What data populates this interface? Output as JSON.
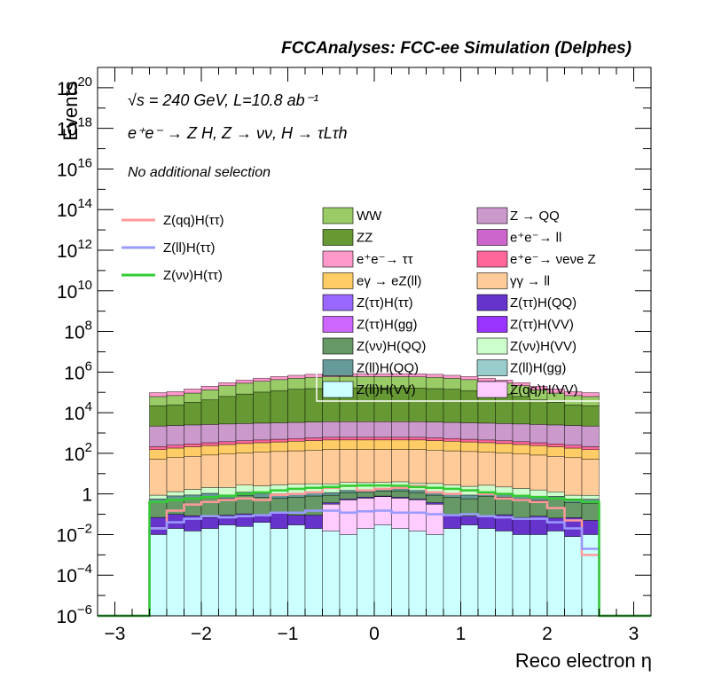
{
  "chart_data": {
    "type": "histogram",
    "title": "FCCAnalyses: FCC-ee Simulation (Delphes)",
    "xlabel": "Reco electron η",
    "ylabel": "Events",
    "xlim": [
      -3.2,
      3.2
    ],
    "ylim": [
      1e-06,
      1e+21
    ],
    "yscale": "log",
    "x_ticks": [
      "−3",
      "−2",
      "−1",
      "0",
      "1",
      "2",
      "3"
    ],
    "y_ticks": [
      "10^20",
      "10^18",
      "10^16",
      "10^14",
      "10^12",
      "10^10",
      "10^8",
      "10^6",
      "10^4",
      "10^2",
      "1",
      "10^-2",
      "10^-4",
      "10^-6"
    ],
    "annotations": {
      "line1": "√s = 240 GeV, L=10.8 ab⁻¹",
      "line2": "e⁺e⁻ → Z H, Z → νν, H → τLτh",
      "line3": "No additional selection"
    },
    "bin_edges": [
      -2.6,
      -2.4,
      -2.2,
      -2.0,
      -1.8,
      -1.6,
      -1.4,
      -1.2,
      -1.0,
      -0.8,
      -0.6,
      -0.4,
      -0.2,
      0.0,
      0.2,
      0.4,
      0.6,
      0.8,
      1.0,
      1.2,
      1.4,
      1.6,
      1.8,
      2.0,
      2.2,
      2.4,
      2.6
    ],
    "stack_order": "bottom_to_top",
    "stack_edges": "black",
    "stacked_series": [
      {
        "name": "Z(ll)H(VV)",
        "color": "#ccffff",
        "values": [
          0.01,
          0.02,
          0.015,
          0.02,
          0.03,
          0.025,
          0.04,
          0.02,
          0.03,
          0.02,
          0.015,
          0.01,
          0.02,
          0.03,
          0.02,
          0.015,
          0.01,
          0.02,
          0.03,
          0.02,
          0.015,
          0.01,
          0.01,
          0.015,
          0.008,
          0.01
        ]
      },
      {
        "name": "Z(qq)H(VV)",
        "color": "#ffccff",
        "values": [
          0,
          0,
          0,
          0,
          0,
          0,
          0,
          0,
          0,
          0,
          0.3,
          0.5,
          0.6,
          0.7,
          0.6,
          0.5,
          0.3,
          0,
          0,
          0,
          0,
          0,
          0,
          0,
          0,
          0
        ]
      },
      {
        "name": "Z(ττ)H(QQ)",
        "color": "#6633cc",
        "values": [
          0.06,
          0.08,
          0.07,
          0.05,
          0.06,
          0.08,
          0.05,
          0.09,
          0.06,
          0.07,
          0.05,
          0.06,
          0.08,
          0.06,
          0.07,
          0.05,
          0.06,
          0.07,
          0.05,
          0.06,
          0.08,
          0.06,
          0.07,
          0.05,
          0.06,
          0.04
        ]
      },
      {
        "name": "Z(νν)H(QQ)",
        "color": "#669966",
        "values": [
          0.3,
          0.4,
          0.5,
          0.6,
          0.5,
          0.7,
          0.6,
          0.5,
          0.6,
          0.7,
          0.5,
          0.6,
          0.5,
          0.6,
          0.7,
          0.6,
          0.5,
          0.6,
          0.5,
          0.7,
          0.6,
          0.5,
          0.4,
          0.5,
          0.3,
          0.3
        ]
      },
      {
        "name": "Z(ll)H(QQ)",
        "color": "#669999",
        "values": [
          0.2,
          0.3,
          0.3,
          0.4,
          0.3,
          0.4,
          0.3,
          0.4,
          0.3,
          0.4,
          0.3,
          0.3,
          0.4,
          0.3,
          0.4,
          0.3,
          0.4,
          0.3,
          0.3,
          0.4,
          0.3,
          0.3,
          0.3,
          0.2,
          0.2,
          0.2
        ]
      },
      {
        "name": "Z(νν)H(VV)",
        "color": "#ccffcc",
        "values": [
          0.3,
          0.5,
          0.8,
          1.0,
          1.2,
          1.5,
          1.5,
          1.8,
          2.0,
          2.0,
          2.0,
          2.2,
          2.0,
          2.0,
          2.2,
          2.0,
          2.0,
          1.8,
          1.5,
          1.5,
          1.2,
          1.0,
          0.8,
          0.5,
          0.3,
          0.3
        ]
      },
      {
        "name": "γγ → ll",
        "color": "#ffcc99",
        "values": [
          50,
          60,
          70,
          80,
          90,
          100,
          110,
          120,
          130,
          140,
          150,
          150,
          150,
          150,
          150,
          150,
          140,
          130,
          120,
          110,
          100,
          90,
          80,
          70,
          60,
          50
        ]
      },
      {
        "name": "eγ → eZ(ll)",
        "color": "#ffcc66",
        "values": [
          100,
          120,
          140,
          160,
          180,
          200,
          220,
          240,
          260,
          280,
          300,
          300,
          300,
          300,
          300,
          300,
          280,
          260,
          240,
          220,
          200,
          180,
          160,
          140,
          120,
          100
        ]
      },
      {
        "name": "e⁺e⁻→ νeνe Z",
        "color": "#ff6699",
        "values": [
          60,
          70,
          80,
          90,
          100,
          110,
          120,
          130,
          140,
          150,
          160,
          160,
          160,
          160,
          160,
          160,
          150,
          140,
          130,
          120,
          110,
          100,
          90,
          80,
          70,
          60
        ]
      },
      {
        "name": "Z → QQ",
        "color": "#cc99cc",
        "values": [
          2000,
          2100,
          2200,
          2300,
          2400,
          2500,
          2600,
          2700,
          2800,
          2900,
          3000,
          3000,
          3000,
          3000,
          3000,
          3000,
          2900,
          2800,
          2700,
          2600,
          2500,
          2400,
          2300,
          2200,
          2100,
          2000
        ]
      },
      {
        "name": "ZZ",
        "color": "#669933",
        "values": [
          20000,
          22000,
          30000,
          40000,
          60000,
          80000,
          100000,
          120000,
          140000,
          150000,
          160000,
          165000,
          165000,
          165000,
          165000,
          160000,
          150000,
          140000,
          120000,
          100000,
          80000,
          60000,
          40000,
          30000,
          22000,
          20000
        ]
      },
      {
        "name": "WW",
        "color": "#99cc66",
        "values": [
          40000,
          45000,
          60000,
          90000,
          150000,
          200000,
          250000,
          300000,
          350000,
          400000,
          420000,
          430000,
          430000,
          430000,
          430000,
          420000,
          400000,
          350000,
          300000,
          250000,
          200000,
          150000,
          90000,
          60000,
          45000,
          40000
        ]
      },
      {
        "name": "e⁺e⁻→ ττ",
        "color": "#ff99cc",
        "values": [
          35000,
          40000,
          55000,
          70000,
          90000,
          120000,
          150000,
          180000,
          200000,
          220000,
          230000,
          240000,
          240000,
          240000,
          240000,
          230000,
          220000,
          200000,
          180000,
          150000,
          120000,
          90000,
          70000,
          55000,
          40000,
          35000
        ]
      }
    ],
    "overlay_series": [
      {
        "name": "Z(qq)H(ττ)",
        "color": "#ff9999",
        "values": [
          0.02,
          0.15,
          0.3,
          0.4,
          0.5,
          0.6,
          0.5,
          0.9,
          1.0,
          1.2,
          2.0,
          2.5,
          1.5,
          1.8,
          2.0,
          2.5,
          1.2,
          1.0,
          1.5,
          1.0,
          0.6,
          0.5,
          0.4,
          0.2,
          0.05,
          0.001
        ]
      },
      {
        "name": "Z(ll)H(ττ)",
        "color": "#9999ff",
        "values": [
          0.02,
          0.04,
          0.06,
          0.08,
          0.07,
          0.08,
          0.09,
          0.12,
          0.12,
          0.15,
          0.15,
          0.12,
          0.14,
          0.15,
          0.12,
          0.12,
          0.1,
          0.09,
          0.1,
          0.08,
          0.07,
          0.06,
          0.06,
          0.04,
          0.02,
          0.002
        ]
      },
      {
        "name": "Z(νν)H(ττ)",
        "color": "#33cc33",
        "values": [
          0.4,
          0.5,
          0.6,
          0.7,
          0.8,
          1.0,
          1.2,
          1.5,
          1.8,
          2.0,
          2.2,
          2.5,
          2.6,
          2.6,
          2.5,
          2.2,
          2.0,
          1.8,
          1.5,
          1.2,
          1.0,
          0.8,
          0.7,
          0.6,
          0.5,
          0.4
        ]
      }
    ],
    "legend_overlay": [
      "Z(qq)H(ττ)",
      "Z(ll)H(ττ)",
      "Z(νν)H(ττ)"
    ],
    "legend_stacked_left": [
      "WW",
      "ZZ",
      "e⁺e⁻→ ττ",
      "eγ → eZ(ll)",
      "Z(ττ)H(ττ)",
      "Z(ττ)H(gg)",
      "Z(νν)H(QQ)",
      "Z(ll)H(QQ)",
      "Z(ll)H(VV)"
    ],
    "legend_stacked_right": [
      "Z → QQ",
      "e⁺e⁻→ ll",
      "e⁺e⁻→ νeνe Z",
      "γγ → ll",
      "Z(ττ)H(QQ)",
      "Z(ττ)H(VV)",
      "Z(νν)H(VV)",
      "Z(ll)H(gg)",
      "Z(qq)H(VV)"
    ],
    "legend_colors": {
      "WW": "#99cc66",
      "ZZ": "#669933",
      "e⁺e⁻→ ττ": "#ff99cc",
      "eγ → eZ(ll)": "#ffcc66",
      "Z(ττ)H(ττ)": "#9966ff",
      "Z(ττ)H(gg)": "#cc66ff",
      "Z(νν)H(QQ)": "#669966",
      "Z(ll)H(QQ)": "#669999",
      "Z(ll)H(VV)": "#ccffff",
      "Z → QQ": "#cc99cc",
      "e⁺e⁻→ ll": "#cc66cc",
      "e⁺e⁻→ νeνe Z": "#ff6699",
      "γγ → ll": "#ffcc99",
      "Z(ττ)H(QQ)": "#6633cc",
      "Z(ττ)H(VV)": "#9933ff",
      "Z(νν)H(VV)": "#ccffcc",
      "Z(ll)H(gg)": "#99cccc",
      "Z(qq)H(VV)": "#ffccff"
    }
  }
}
